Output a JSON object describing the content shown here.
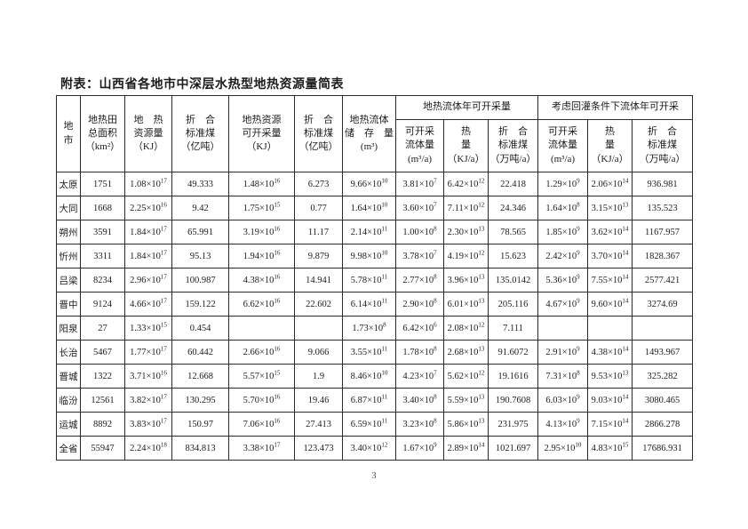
{
  "page": {
    "title": "附表：山西省各地市中深层水热型地热资源量简表",
    "page_number": "3"
  },
  "table": {
    "header": {
      "col_city": "地\n市",
      "col_area": "地热田\n总面积\n（km²）",
      "col_resource": "地　热\n资源量\n（KJ）",
      "col_coal_resource": "折　合\n标准煤\n（亿吨）",
      "col_recoverable": "地热资源\n可开采量\n（KJ）",
      "col_coal_recoverable": "折　合\n标准煤\n（亿吨）",
      "col_fluid_storage": "地热流体\n储　存　量\n(m³)",
      "group_annual": "地热流体年可开采量",
      "group_reinjection": "考虑回灌条件下流体年可开采",
      "sub_fluid_annual": "可开采\n流体量\n(m³/a)",
      "sub_heat_annual": "热\n量\n（KJ/a）",
      "sub_coal_annual": "折　合\n标准煤\n（万吨/a）",
      "sub_fluid_reinj": "可开采\n流体量\n(m³/a)",
      "sub_heat_reinj": "热\n量\n（KJ/a）",
      "sub_coal_reinj": "折　合\n标准煤\n（万吨/a）"
    },
    "rows": [
      {
        "cells": [
          "太原",
          "1751",
          "1.08×10^17",
          "49.333",
          "1.48×10^16",
          "6.273",
          "9.66×10^10",
          "3.81×10^7",
          "6.42×10^12",
          "22.418",
          "1.29×10^9",
          "2.06×10^14",
          "936.981"
        ]
      },
      {
        "cells": [
          "大同",
          "1668",
          "2.25×10^16",
          "9.42",
          "1.75×10^15",
          "0.77",
          "1.64×10^10",
          "3.60×10^7",
          "7.11×10^12",
          "24.346",
          "1.64×10^8",
          "3.15×10^13",
          "135.523"
        ]
      },
      {
        "cells": [
          "朔州",
          "3591",
          "1.84×10^17",
          "65.991",
          "3.19×10^16",
          "11.17",
          "2.14×10^11",
          "1.00×10^8",
          "2.30×10^13",
          "78.565",
          "1.85×10^9",
          "3.62×10^14",
          "1167.957"
        ]
      },
      {
        "cells": [
          "忻州",
          "3311",
          "1.84×10^17",
          "95.13",
          "1.94×10^16",
          "9.879",
          "9.98×10^10",
          "3.78×10^7",
          "4.19×10^12",
          "15.623",
          "2.42×10^9",
          "3.70×10^14",
          "1828.367"
        ]
      },
      {
        "cells": [
          "吕梁",
          "8234",
          "2.96×10^17",
          "100.987",
          "4.38×10^16",
          "14.941",
          "5.78×10^11",
          "2.77×10^8",
          "3.96×10^13",
          "135.0142",
          "5.36×10^9",
          "7.55×10^14",
          "2577.421"
        ]
      },
      {
        "cells": [
          "晋中",
          "9124",
          "4.66×10^17",
          "159.122",
          "6.62×10^16",
          "22.602",
          "6.14×10^11",
          "2.90×10^8",
          "6.01×10^13",
          "205.116",
          "4.67×10^9",
          "9.60×10^14",
          "3274.69"
        ]
      },
      {
        "cells": [
          "阳泉",
          "27",
          "1.33×10^15",
          "0.454",
          "",
          "",
          "1.73×10^8",
          "6.42×10^6",
          "2.08×10^12",
          "7.111",
          "",
          "",
          ""
        ]
      },
      {
        "cells": [
          "长治",
          "5467",
          "1.77×10^17",
          "60.442",
          "2.66×10^16",
          "9.066",
          "3.55×10^11",
          "1.78×10^8",
          "2.68×10^13",
          "91.6072",
          "2.91×10^9",
          "4.38×10^14",
          "1493.967"
        ]
      },
      {
        "cells": [
          "晋城",
          "1322",
          "3.71×10^16",
          "12.668",
          "5.57×10^15",
          "1.9",
          "8.46×10^10",
          "4.23×10^7",
          "5.62×10^12",
          "19.1616",
          "7.31×10^8",
          "9.53×10^13",
          "325.282"
        ]
      },
      {
        "cells": [
          "临汾",
          "12561",
          "3.82×10^17",
          "130.295",
          "5.70×10^16",
          "19.46",
          "6.87×10^11",
          "3.40×10^8",
          "5.59×10^13",
          "190.7608",
          "6.03×10^9",
          "9.03×10^14",
          "3080.465"
        ]
      },
      {
        "cells": [
          "运城",
          "8892",
          "3.83×10^17",
          "150.97",
          "7.06×10^16",
          "27.413",
          "6.59×10^11",
          "3.23×10^8",
          "5.86×10^13",
          "231.975",
          "4.13×10^9",
          "7.15×10^14",
          "2866.278"
        ]
      },
      {
        "cells": [
          "全省",
          "55947",
          "2.24×10^18",
          "834.813",
          "3.38×10^17",
          "123.473",
          "3.40×10^12",
          "1.67×10^9",
          "2.89×10^14",
          "1021.697",
          "2.95×10^10",
          "4.83×10^15",
          "17686.931"
        ]
      }
    ]
  }
}
